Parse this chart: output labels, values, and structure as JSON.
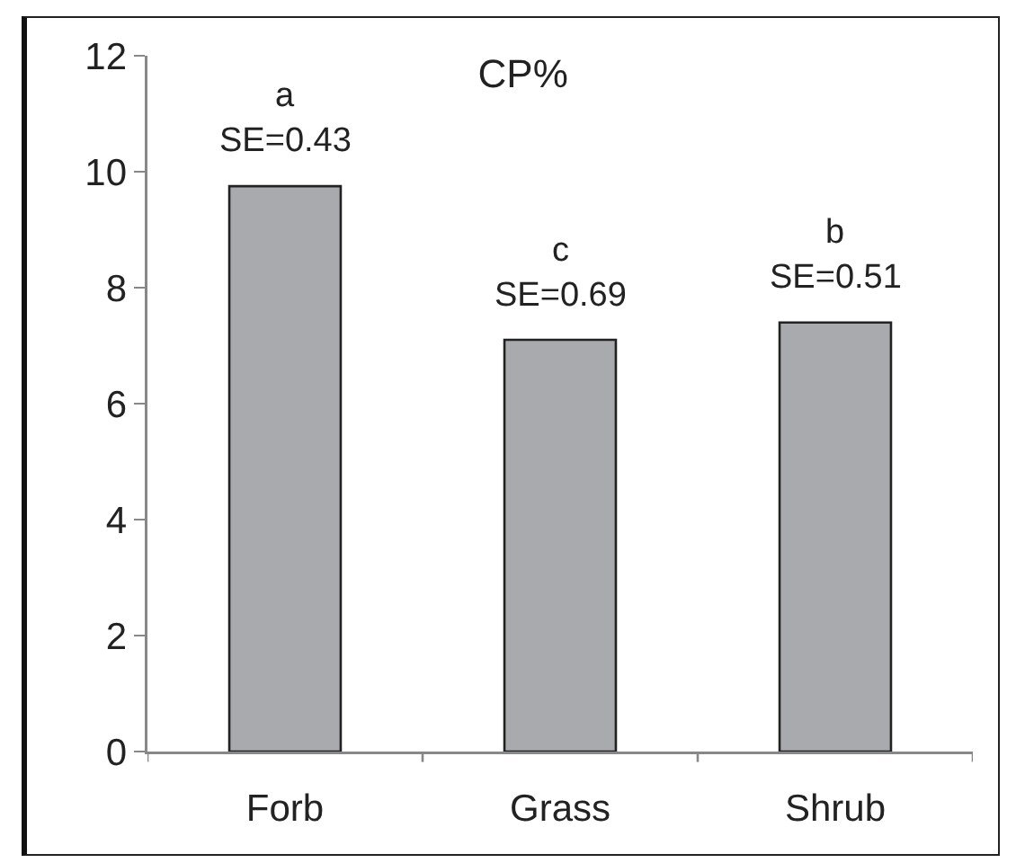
{
  "chart_data": {
    "type": "bar",
    "title": "CP%",
    "categories": [
      "Forb",
      "Grass",
      "Shrub"
    ],
    "values": [
      9.75,
      7.1,
      7.4
    ],
    "color": "#a9aaae",
    "ylim": [
      0,
      12
    ],
    "yticks": [
      0,
      2,
      4,
      6,
      8,
      10,
      12
    ],
    "annotations": [
      {
        "text": "a",
        "x": "Forb",
        "y": 9.75
      },
      {
        "text": "SE=0.43",
        "x": "Forb",
        "y": 9.75
      },
      {
        "text": "c",
        "x": "Grass",
        "y": 7.1
      },
      {
        "text": "SE=0.69",
        "x": "Grass",
        "y": 7.1
      },
      {
        "text": "b",
        "x": "Shrub",
        "y": 7.4
      },
      {
        "text": "SE=0.51",
        "x": "Shrub",
        "y": 7.4
      }
    ]
  }
}
